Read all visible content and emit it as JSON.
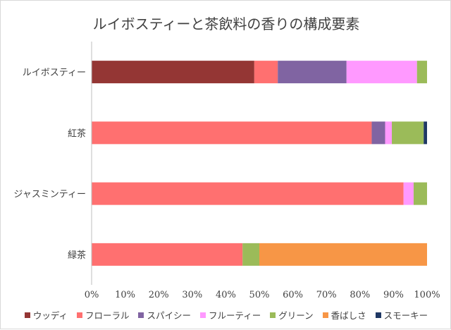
{
  "chart_data": {
    "type": "bar",
    "orientation": "horizontal",
    "stacked": "percent",
    "title": "ルイボスティーと茶飲料の香りの構成要素",
    "categories": [
      "ルイボスティー",
      "紅茶",
      "ジャスミンティー",
      "緑茶"
    ],
    "series": [
      {
        "name": "ウッディ",
        "color": "#943634",
        "values": [
          48.5,
          0,
          0,
          0
        ]
      },
      {
        "name": "フローラル",
        "color": "#FF7070",
        "values": [
          7,
          83.5,
          93,
          45
        ]
      },
      {
        "name": "スパイシー",
        "color": "#8064A2",
        "values": [
          20.5,
          4,
          0,
          0
        ]
      },
      {
        "name": "フルーティー",
        "color": "#FF99FF",
        "values": [
          21,
          2,
          3,
          0
        ]
      },
      {
        "name": "グリーン",
        "color": "#9BBB59",
        "values": [
          3,
          9.5,
          4,
          5
        ]
      },
      {
        "name": "香ばしさ",
        "color": "#F79646",
        "values": [
          0,
          0,
          0,
          50
        ]
      },
      {
        "name": "スモーキー",
        "color": "#1F3864",
        "values": [
          0,
          1,
          0,
          0
        ]
      }
    ],
    "xlim": [
      0,
      100
    ],
    "xticks": [
      "0%",
      "10%",
      "20%",
      "30%",
      "40%",
      "50%",
      "60%",
      "70%",
      "80%",
      "90%",
      "100%"
    ],
    "xlabel": "",
    "ylabel": "",
    "grid": false,
    "legend": "bottom"
  }
}
